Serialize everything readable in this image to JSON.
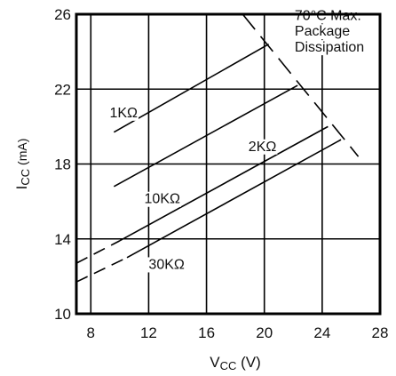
{
  "chart_data": {
    "type": "line",
    "xlabel": {
      "main": "V",
      "sub": "CC",
      "unit": " (V)"
    },
    "ylabel": {
      "main": "I",
      "sub": "CC",
      "unit": " (mA)"
    },
    "xlim": [
      7,
      28
    ],
    "ylim": [
      10,
      26
    ],
    "xticks": [
      8,
      12,
      16,
      20,
      24,
      28
    ],
    "yticks": [
      10,
      14,
      18,
      22,
      26
    ],
    "grid": true,
    "series": [
      {
        "name": "1KΩ",
        "x": [
          9.6,
          20.3
        ],
        "y": [
          19.7,
          24.4
        ],
        "dashed": []
      },
      {
        "name": "2KΩ",
        "x": [
          9.6,
          22.3
        ],
        "y": [
          16.8,
          22.2
        ],
        "dashed": []
      },
      {
        "name": "10KΩ",
        "x": [
          7.0,
          10.0,
          24.4
        ],
        "y": [
          12.7,
          13.9,
          20.0
        ],
        "dashed": [
          [
            7.0,
            10.0
          ]
        ]
      },
      {
        "name": "30KΩ",
        "x": [
          7.0,
          10.5,
          25.3
        ],
        "y": [
          11.7,
          13.0,
          19.3
        ],
        "dashed": [
          [
            7.0,
            10.5
          ]
        ]
      }
    ],
    "dissipation_line": {
      "name": "70°C Max. Package Dissipation",
      "x": [
        18.5,
        26.5
      ],
      "y": [
        26,
        18.4
      ],
      "style": "dashed"
    },
    "annotations": [
      {
        "text": "70°C Max.",
        "x": 22.1,
        "y": 25.7
      },
      {
        "text": "Package",
        "x": 22.1,
        "y": 24.85
      },
      {
        "text": "Dissipation",
        "x": 22.1,
        "y": 24.0
      },
      {
        "text": "1KΩ",
        "x": 9.3,
        "y": 20.5
      },
      {
        "text": "2KΩ",
        "x": 18.9,
        "y": 18.7
      },
      {
        "text": "10KΩ",
        "x": 11.7,
        "y": 15.9
      },
      {
        "text": "30KΩ",
        "x": 12.0,
        "y": 12.4
      }
    ]
  }
}
